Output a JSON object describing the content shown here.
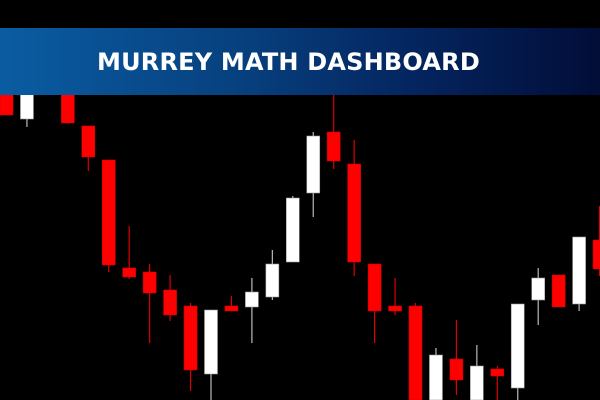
{
  "banner": {
    "title": "MURREY MATH DASHBOARD"
  },
  "chart_data": {
    "type": "candlestick",
    "grid": false,
    "colors": {
      "bull": "#ffffff",
      "bear": "#ff0000",
      "background": "#000000"
    },
    "ylim": [
      0,
      310
    ],
    "candles": [
      {
        "i": 0,
        "o": 310,
        "h": 310,
        "l": 285,
        "c": 285
      },
      {
        "i": 1,
        "o": 281,
        "h": 310,
        "l": 273,
        "c": 310
      },
      {
        "i": 3,
        "o": 310,
        "h": 310,
        "l": 277,
        "c": 277
      },
      {
        "i": 4,
        "o": 274,
        "h": 274,
        "l": 229,
        "c": 243
      },
      {
        "i": 5,
        "o": 240,
        "h": 240,
        "l": 128,
        "c": 135
      },
      {
        "i": 6,
        "o": 132,
        "h": 174,
        "l": 121,
        "c": 123
      },
      {
        "i": 7,
        "o": 128,
        "h": 136,
        "l": 57,
        "c": 107
      },
      {
        "i": 8,
        "o": 110,
        "h": 125,
        "l": 79,
        "c": 85
      },
      {
        "i": 9,
        "o": 94,
        "h": 97,
        "l": 9,
        "c": 30
      },
      {
        "i": 10,
        "o": 26,
        "h": 90,
        "l": 0,
        "c": 90
      },
      {
        "i": 11,
        "o": 94,
        "h": 104,
        "l": 89,
        "c": 89
      },
      {
        "i": 12,
        "o": 93,
        "h": 122,
        "l": 57,
        "c": 108
      },
      {
        "i": 13,
        "o": 103,
        "h": 150,
        "l": 100,
        "c": 136
      },
      {
        "i": 14,
        "o": 138,
        "h": 204,
        "l": 138,
        "c": 202
      },
      {
        "i": 15,
        "o": 207,
        "h": 268,
        "l": 183,
        "c": 264
      },
      {
        "i": 16,
        "o": 268,
        "h": 310,
        "l": 231,
        "c": 239
      },
      {
        "i": 17,
        "o": 236,
        "h": 260,
        "l": 124,
        "c": 138
      },
      {
        "i": 18,
        "o": 136,
        "h": 136,
        "l": 57,
        "c": 89
      },
      {
        "i": 19,
        "o": 94,
        "h": 122,
        "l": 85,
        "c": 89
      },
      {
        "i": 20,
        "o": 94,
        "h": 97,
        "l": 0,
        "c": 0
      },
      {
        "i": 21,
        "o": 0,
        "h": 52,
        "l": 0,
        "c": 45
      },
      {
        "i": 22,
        "o": 41,
        "h": 80,
        "l": 5,
        "c": 20
      },
      {
        "i": 23,
        "o": 0,
        "h": 55,
        "l": 0,
        "c": 34
      },
      {
        "i": 24,
        "o": 31,
        "h": 34,
        "l": 0,
        "c": 24
      },
      {
        "i": 25,
        "o": 12,
        "h": 96,
        "l": 0,
        "c": 96
      },
      {
        "i": 26,
        "o": 100,
        "h": 132,
        "l": 75,
        "c": 122
      },
      {
        "i": 27,
        "o": 125,
        "h": 125,
        "l": 93,
        "c": 93
      },
      {
        "i": 28,
        "o": 96,
        "h": 163,
        "l": 89,
        "c": 163
      },
      {
        "i": 29,
        "o": 160,
        "h": 194,
        "l": 124,
        "c": 131
      }
    ]
  }
}
